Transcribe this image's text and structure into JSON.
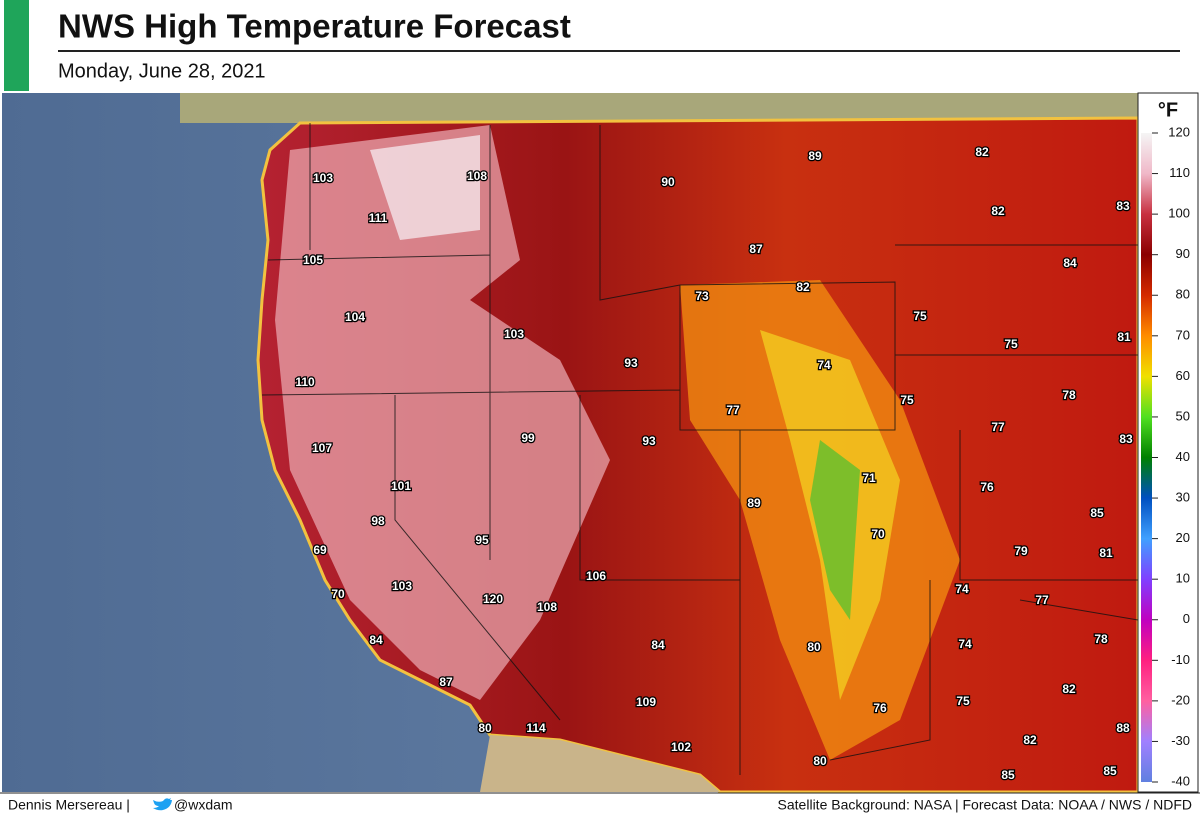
{
  "header": {
    "title": "NWS High Temperature Forecast",
    "subtitle": "Monday, June 28, 2021"
  },
  "map": {
    "labels": [
      103,
      111,
      108,
      90,
      89,
      82,
      82,
      83,
      105,
      87,
      82,
      84,
      73,
      104,
      103,
      75,
      75,
      81,
      93,
      74,
      110,
      75,
      78,
      77,
      77,
      93,
      99,
      83,
      107,
      71,
      101,
      76,
      89,
      98,
      85,
      70,
      95,
      69,
      79,
      81,
      106,
      103,
      74,
      120,
      108,
      70,
      77,
      78,
      84,
      74,
      80,
      84,
      82,
      87,
      109,
      75,
      76,
      88,
      80,
      114,
      82,
      102,
      80,
      85,
      85
    ]
  },
  "legend": {
    "unit": "°F",
    "ticks": [
      120,
      110,
      100,
      90,
      80,
      70,
      60,
      50,
      40,
      30,
      20,
      10,
      0,
      -10,
      -20,
      -30,
      -40
    ]
  },
  "footer": {
    "author": "Dennis Mersereau |",
    "handle": "@wxdam",
    "credits": "Satellite Background: NASA | Forecast Data: NOAA / NWS / NDFD"
  }
}
